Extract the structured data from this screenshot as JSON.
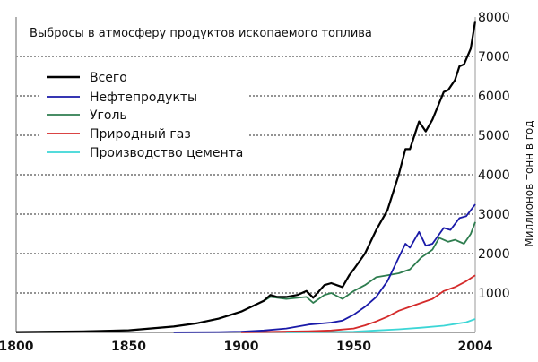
{
  "chart_data": {
    "type": "line",
    "title": "Выбросы в атмосферу продуктов ископаемого топлива",
    "xlabel": "",
    "ylabel": "Миллионов тонн в год",
    "xlim": [
      1800,
      2004
    ],
    "ylim": [
      0,
      8000
    ],
    "x_ticks": [
      "1800",
      "1850",
      "1900",
      "1950",
      "2004"
    ],
    "y_ticks": [
      "1000",
      "2000",
      "3000",
      "4000",
      "5000",
      "6000",
      "7000",
      "8000"
    ],
    "grid": "horizontal dotted",
    "y_axis_side": "right",
    "legend_position": "top-left",
    "series": [
      {
        "name": "Всего",
        "color": "#000000",
        "points": [
          [
            1800,
            8
          ],
          [
            1830,
            25
          ],
          [
            1850,
            55
          ],
          [
            1870,
            150
          ],
          [
            1880,
            230
          ],
          [
            1890,
            350
          ],
          [
            1900,
            530
          ],
          [
            1910,
            800
          ],
          [
            1913,
            950
          ],
          [
            1916,
            900
          ],
          [
            1920,
            900
          ],
          [
            1925,
            950
          ],
          [
            1929,
            1050
          ],
          [
            1932,
            880
          ],
          [
            1937,
            1200
          ],
          [
            1940,
            1250
          ],
          [
            1945,
            1150
          ],
          [
            1948,
            1450
          ],
          [
            1950,
            1600
          ],
          [
            1955,
            2000
          ],
          [
            1960,
            2600
          ],
          [
            1965,
            3100
          ],
          [
            1970,
            4000
          ],
          [
            1973,
            4650
          ],
          [
            1975,
            4650
          ],
          [
            1979,
            5350
          ],
          [
            1982,
            5100
          ],
          [
            1985,
            5400
          ],
          [
            1990,
            6100
          ],
          [
            1992,
            6150
          ],
          [
            1995,
            6400
          ],
          [
            1997,
            6750
          ],
          [
            1999,
            6800
          ],
          [
            2002,
            7200
          ],
          [
            2004,
            7900
          ]
        ]
      },
      {
        "name": "Нефтепродукты",
        "color": "#1a1aa8",
        "points": [
          [
            1870,
            2
          ],
          [
            1890,
            10
          ],
          [
            1900,
            20
          ],
          [
            1910,
            50
          ],
          [
            1920,
            100
          ],
          [
            1930,
            200
          ],
          [
            1940,
            250
          ],
          [
            1945,
            300
          ],
          [
            1950,
            450
          ],
          [
            1955,
            650
          ],
          [
            1960,
            900
          ],
          [
            1965,
            1300
          ],
          [
            1970,
            1900
          ],
          [
            1973,
            2250
          ],
          [
            1975,
            2150
          ],
          [
            1979,
            2550
          ],
          [
            1982,
            2200
          ],
          [
            1985,
            2250
          ],
          [
            1990,
            2650
          ],
          [
            1993,
            2600
          ],
          [
            1997,
            2900
          ],
          [
            2000,
            2950
          ],
          [
            2004,
            3250
          ]
        ]
      },
      {
        "name": "Уголь",
        "color": "#2e7d4f",
        "points": [
          [
            1800,
            8
          ],
          [
            1830,
            25
          ],
          [
            1850,
            55
          ],
          [
            1870,
            150
          ],
          [
            1880,
            230
          ],
          [
            1890,
            350
          ],
          [
            1900,
            530
          ],
          [
            1910,
            800
          ],
          [
            1913,
            900
          ],
          [
            1920,
            850
          ],
          [
            1929,
            900
          ],
          [
            1932,
            750
          ],
          [
            1937,
            950
          ],
          [
            1940,
            1000
          ],
          [
            1945,
            850
          ],
          [
            1950,
            1050
          ],
          [
            1955,
            1200
          ],
          [
            1960,
            1400
          ],
          [
            1965,
            1450
          ],
          [
            1970,
            1500
          ],
          [
            1975,
            1600
          ],
          [
            1980,
            1900
          ],
          [
            1985,
            2100
          ],
          [
            1988,
            2400
          ],
          [
            1992,
            2300
          ],
          [
            1995,
            2350
          ],
          [
            1999,
            2250
          ],
          [
            2002,
            2500
          ],
          [
            2004,
            2800
          ]
        ]
      },
      {
        "name": "Природный газ",
        "color": "#d42a2a",
        "points": [
          [
            1900,
            5
          ],
          [
            1930,
            30
          ],
          [
            1940,
            50
          ],
          [
            1950,
            100
          ],
          [
            1955,
            180
          ],
          [
            1960,
            280
          ],
          [
            1965,
            400
          ],
          [
            1970,
            550
          ],
          [
            1975,
            650
          ],
          [
            1980,
            750
          ],
          [
            1985,
            850
          ],
          [
            1990,
            1050
          ],
          [
            1995,
            1150
          ],
          [
            2000,
            1300
          ],
          [
            2004,
            1450
          ]
        ]
      },
      {
        "name": "Производство цемента",
        "color": "#3cd6d6",
        "points": [
          [
            1920,
            5
          ],
          [
            1930,
            10
          ],
          [
            1950,
            20
          ],
          [
            1960,
            50
          ],
          [
            1970,
            80
          ],
          [
            1980,
            120
          ],
          [
            1990,
            170
          ],
          [
            2000,
            260
          ],
          [
            2004,
            340
          ]
        ]
      }
    ]
  }
}
